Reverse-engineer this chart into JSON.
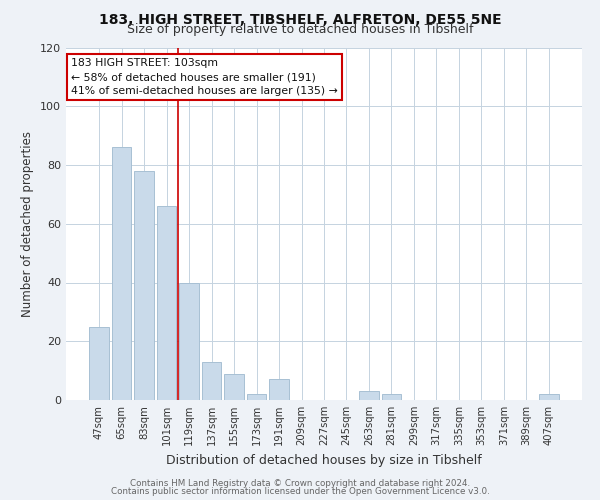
{
  "title1": "183, HIGH STREET, TIBSHELF, ALFRETON, DE55 5NE",
  "title2": "Size of property relative to detached houses in Tibshelf",
  "xlabel": "Distribution of detached houses by size in Tibshelf",
  "ylabel": "Number of detached properties",
  "bar_labels": [
    "47sqm",
    "65sqm",
    "83sqm",
    "101sqm",
    "119sqm",
    "137sqm",
    "155sqm",
    "173sqm",
    "191sqm",
    "209sqm",
    "227sqm",
    "245sqm",
    "263sqm",
    "281sqm",
    "299sqm",
    "317sqm",
    "335sqm",
    "353sqm",
    "371sqm",
    "389sqm",
    "407sqm"
  ],
  "bar_values": [
    25,
    86,
    78,
    66,
    40,
    13,
    9,
    2,
    7,
    0,
    0,
    0,
    3,
    2,
    0,
    0,
    0,
    0,
    0,
    0,
    2
  ],
  "bar_color": "#c9daea",
  "bar_edge_color": "#a8c0d4",
  "annotation_text_line1": "183 HIGH STREET: 103sqm",
  "annotation_text_line2": "← 58% of detached houses are smaller (191)",
  "annotation_text_line3": "41% of semi-detached houses are larger (135) →",
  "box_edge_color": "#cc0000",
  "box_face_color": "#ffffff",
  "vline_bar_index": 3.5,
  "ylim": [
    0,
    120
  ],
  "yticks": [
    0,
    20,
    40,
    60,
    80,
    100,
    120
  ],
  "footer1": "Contains HM Land Registry data © Crown copyright and database right 2024.",
  "footer2": "Contains public sector information licensed under the Open Government Licence v3.0.",
  "bg_color": "#eef2f7",
  "plot_bg_color": "#ffffff",
  "grid_color": "#c5d3e0",
  "title1_fontsize": 10,
  "title2_fontsize": 9
}
